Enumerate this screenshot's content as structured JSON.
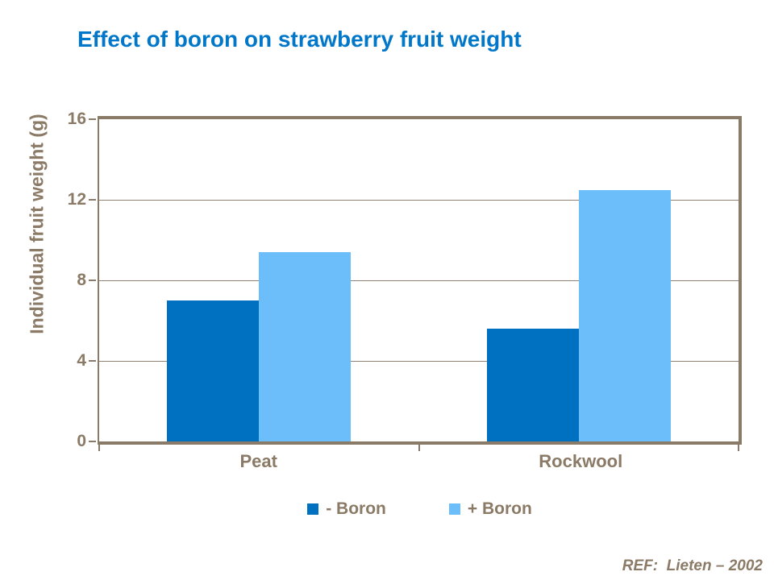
{
  "title": "Effect of boron on strawberry fruit weight",
  "footer": {
    "ref_label": "REF:  Lieten – 2002"
  },
  "colors": {
    "title_text": "#0077C8",
    "axis_text": "#8A7A66",
    "axis_line": "#8A7B69",
    "minus_boron": "#0070C0",
    "plus_boron": "#6CBEFA",
    "background": "#FFFFFF"
  },
  "chart_data": {
    "type": "bar",
    "title": "Effect of boron on strawberry fruit weight",
    "categories": [
      "Peat",
      "Rockwool"
    ],
    "series": [
      {
        "name": "- Boron",
        "color": "#0070C0",
        "values": [
          7.0,
          5.6
        ]
      },
      {
        "name": "+ Boron",
        "color": "#6CBEFA",
        "values": [
          9.4,
          12.5
        ]
      }
    ],
    "xlabel": "",
    "ylabel": "Individual fruit weight (g)",
    "ylim": [
      0,
      16
    ],
    "yticks": [
      0,
      4,
      8,
      12,
      16
    ],
    "grid": true,
    "legend_position": "bottom"
  }
}
